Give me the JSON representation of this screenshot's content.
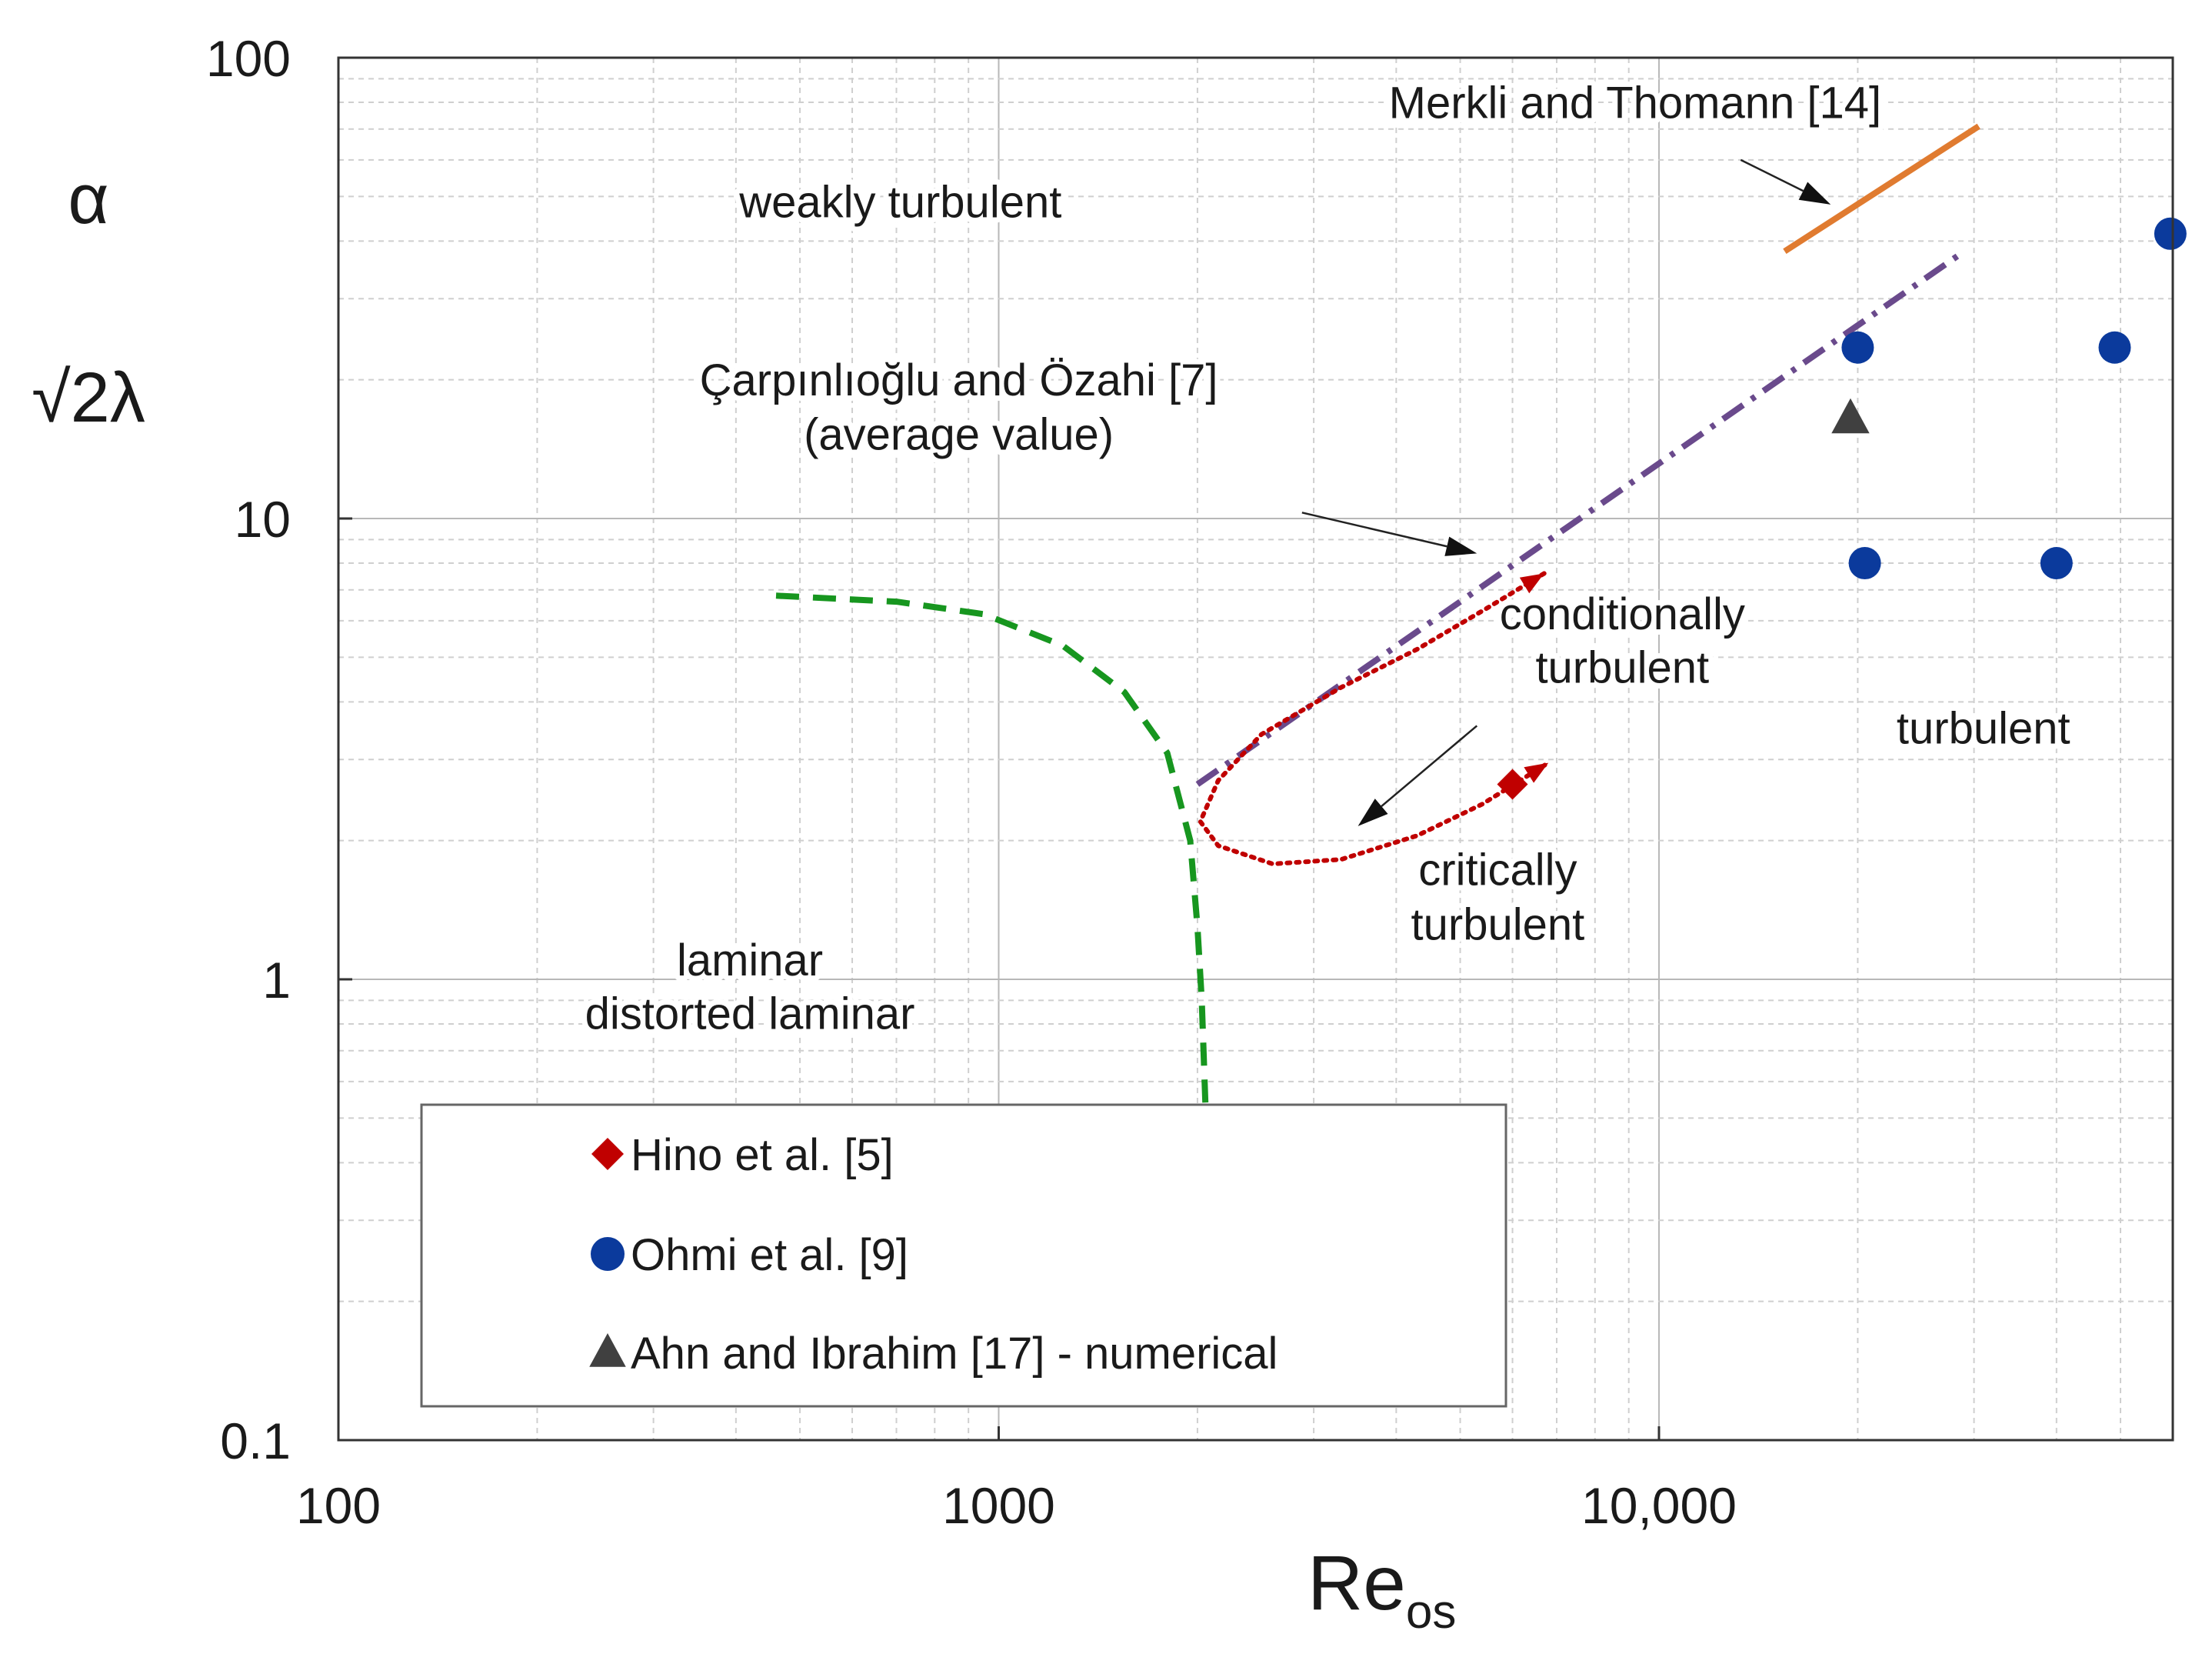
{
  "chart_data": {
    "type": "scatter",
    "title": "",
    "xlabel": "Re",
    "xlabel_subscript": "os",
    "ylabel_top": "α",
    "ylabel_bottom": "√2λ",
    "xscale": "log",
    "yscale": "log",
    "xlim": [
      100,
      60000
    ],
    "ylim": [
      0.1,
      100
    ],
    "grid": true,
    "x_tick_labels": [
      {
        "value": 100,
        "label": "100"
      },
      {
        "value": 1000,
        "label": "1000"
      },
      {
        "value": 10000,
        "label": "10,000"
      }
    ],
    "y_tick_labels": [
      {
        "value": 0.1,
        "label": "0.1"
      },
      {
        "value": 1,
        "label": "1"
      },
      {
        "value": 10,
        "label": "10"
      },
      {
        "value": 100,
        "label": "100"
      }
    ],
    "series": [
      {
        "name": "Hino et al. [5]",
        "marker": "diamond",
        "color": "#c00000",
        "points": [
          {
            "x": 6000,
            "y": 2.65
          }
        ]
      },
      {
        "name": "Ohmi et al. [9]",
        "marker": "circle",
        "color": "#0b3a9c",
        "points": [
          {
            "x": 20000,
            "y": 23.5
          },
          {
            "x": 20500,
            "y": 8.0
          },
          {
            "x": 40000,
            "y": 8.0
          },
          {
            "x": 49000,
            "y": 23.5
          },
          {
            "x": 59500,
            "y": 41.5
          }
        ]
      },
      {
        "name": "Ahn and Ibrahim [17] - numerical",
        "marker": "triangle",
        "color": "#404040",
        "points": [
          {
            "x": 19500,
            "y": 16.5
          }
        ]
      }
    ],
    "lines": [
      {
        "name": "Merkli and Thomann [14]",
        "style": "solid",
        "color": "#e07b30",
        "points": [
          {
            "x": 15500,
            "y": 38
          },
          {
            "x": 30500,
            "y": 71
          }
        ]
      },
      {
        "name": "Çarpınlıoğlu and Özahi [7] (average value)",
        "style": "dashdot",
        "color": "#6a4a8c",
        "points": [
          {
            "x": 2000,
            "y": 2.65
          },
          {
            "x": 29000,
            "y": 38
          }
        ]
      },
      {
        "name": "laminar boundary",
        "style": "dashed",
        "color": "#17961f",
        "points": [
          {
            "x": 460,
            "y": 6.8
          },
          {
            "x": 700,
            "y": 6.6
          },
          {
            "x": 950,
            "y": 6.2
          },
          {
            "x": 1250,
            "y": 5.3
          },
          {
            "x": 1550,
            "y": 4.2
          },
          {
            "x": 1800,
            "y": 3.1
          },
          {
            "x": 1950,
            "y": 2.0
          },
          {
            "x": 2000,
            "y": 1.3
          },
          {
            "x": 2030,
            "y": 0.9
          },
          {
            "x": 2060,
            "y": 0.5
          }
        ]
      },
      {
        "name": "transition path",
        "style": "dotted",
        "color": "#c00000",
        "points": [
          {
            "x": 6700,
            "y": 7.6
          },
          {
            "x": 5500,
            "y": 6.4
          },
          {
            "x": 4300,
            "y": 5.2
          },
          {
            "x": 3300,
            "y": 4.3
          },
          {
            "x": 2500,
            "y": 3.4
          },
          {
            "x": 2150,
            "y": 2.7
          },
          {
            "x": 2020,
            "y": 2.2
          },
          {
            "x": 2150,
            "y": 1.95
          },
          {
            "x": 2600,
            "y": 1.78
          },
          {
            "x": 3300,
            "y": 1.82
          },
          {
            "x": 4300,
            "y": 2.05
          },
          {
            "x": 5400,
            "y": 2.4
          },
          {
            "x": 6800,
            "y": 2.95
          }
        ]
      }
    ],
    "arrows": [
      {
        "from": {
          "x": 13300,
          "y": 60
        },
        "to": {
          "x": 18200,
          "y": 48
        }
      },
      {
        "from": {
          "x": 2880,
          "y": 10.3
        },
        "to": {
          "x": 5300,
          "y": 8.4
        }
      },
      {
        "from": {
          "x": 5300,
          "y": 3.55
        },
        "to": {
          "x": 3500,
          "y": 2.15
        }
      }
    ],
    "annotations": [
      {
        "id": "merkli",
        "text": "Merkli and Thomann [14]",
        "x": 9200,
        "y": 74
      },
      {
        "id": "weakly",
        "text": "weakly turbulent",
        "x": 710,
        "y": 45
      },
      {
        "id": "carp1",
        "text": "Çarpınlıoğlu and Özahi [7]",
        "x": 870,
        "y": 18.5
      },
      {
        "id": "carp2",
        "text": "(average value)",
        "x": 870,
        "y": 14.1
      },
      {
        "id": "cond1",
        "text": "conditionally",
        "x": 8800,
        "y": 5.75
      },
      {
        "id": "cond2",
        "text": "turbulent",
        "x": 8800,
        "y": 4.4
      },
      {
        "id": "turb",
        "text": "turbulent",
        "x": 31000,
        "y": 3.25
      },
      {
        "id": "crit1",
        "text": "critically",
        "x": 5700,
        "y": 1.6
      },
      {
        "id": "crit2",
        "text": "turbulent",
        "x": 5700,
        "y": 1.22
      },
      {
        "id": "lam1",
        "text": "laminar",
        "x": 420,
        "y": 1.02
      },
      {
        "id": "lam2",
        "text": "distorted laminar",
        "x": 420,
        "y": 0.78
      }
    ],
    "legend": {
      "position": "bottom-left",
      "entries": [
        {
          "marker": "diamond",
          "color": "#c00000",
          "label": "Hino et al. [5]"
        },
        {
          "marker": "circle",
          "color": "#0b3a9c",
          "label": "Ohmi et al. [9]"
        },
        {
          "marker": "triangle",
          "color": "#404040",
          "label": "Ahn and Ibrahim [17] - numerical"
        }
      ]
    }
  }
}
